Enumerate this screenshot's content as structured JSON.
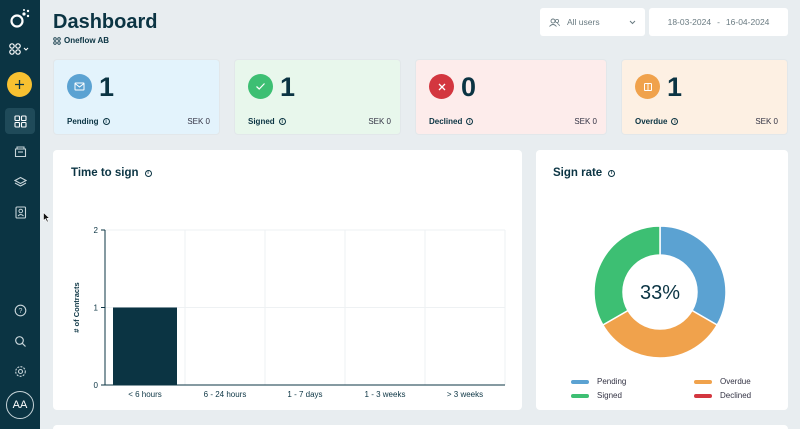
{
  "header": {
    "title": "Dashboard",
    "workspace": "Oneflow AB",
    "users_filter": "All users",
    "date_from": "18-03-2024",
    "date_separator": "-",
    "date_to": "16-04-2024"
  },
  "sidebar": {
    "avatar_initials": "AA",
    "items": [
      "dashboard",
      "documents",
      "templates",
      "contacts"
    ],
    "bottom": [
      "help",
      "search",
      "settings"
    ]
  },
  "cards": [
    {
      "label": "Pending",
      "count": "1",
      "amount": "SEK 0",
      "icon": "envelope-icon",
      "bg": "#e3f3fc",
      "icon_bg": "#5ba2d2"
    },
    {
      "label": "Signed",
      "count": "1",
      "amount": "SEK 0",
      "icon": "check-icon",
      "bg": "#e8f7ec",
      "icon_bg": "#3dbf73"
    },
    {
      "label": "Declined",
      "count": "0",
      "amount": "SEK 0",
      "icon": "cross-icon",
      "bg": "#fdeceb",
      "icon_bg": "#d3363f"
    },
    {
      "label": "Overdue",
      "count": "1",
      "amount": "SEK 0",
      "icon": "calendar-icon",
      "bg": "#fdf0e3",
      "icon_bg": "#f0a24c"
    }
  ],
  "time_to_sign": {
    "title": "Time to sign",
    "chart_data": {
      "type": "bar",
      "categories": [
        "< 6 hours",
        "6 - 24 hours",
        "1 - 7 days",
        "1 - 3 weeks",
        "> 3 weeks"
      ],
      "values": [
        1,
        0,
        0,
        0,
        0
      ],
      "ylabel": "# of Contracts",
      "ylim": [
        0,
        2
      ],
      "yticks": [
        "0",
        "1",
        "2"
      ],
      "bar_color": "#0b3443",
      "grid": true
    }
  },
  "sign_rate": {
    "title": "Sign rate",
    "center_text": "33%",
    "chart_data": {
      "type": "pie",
      "labels": [
        "Pending",
        "Signed",
        "Overdue",
        "Declined"
      ],
      "values": [
        1,
        1,
        1,
        0
      ],
      "colors": [
        "#5ba2d2",
        "#3dbf73",
        "#f0a24c",
        "#d3363f"
      ]
    },
    "legend": [
      {
        "label": "Pending",
        "color": "#5ba2d2"
      },
      {
        "label": "Overdue",
        "color": "#f0a24c"
      },
      {
        "label": "Signed",
        "color": "#3dbf73"
      },
      {
        "label": "Declined",
        "color": "#d3363f"
      }
    ]
  }
}
